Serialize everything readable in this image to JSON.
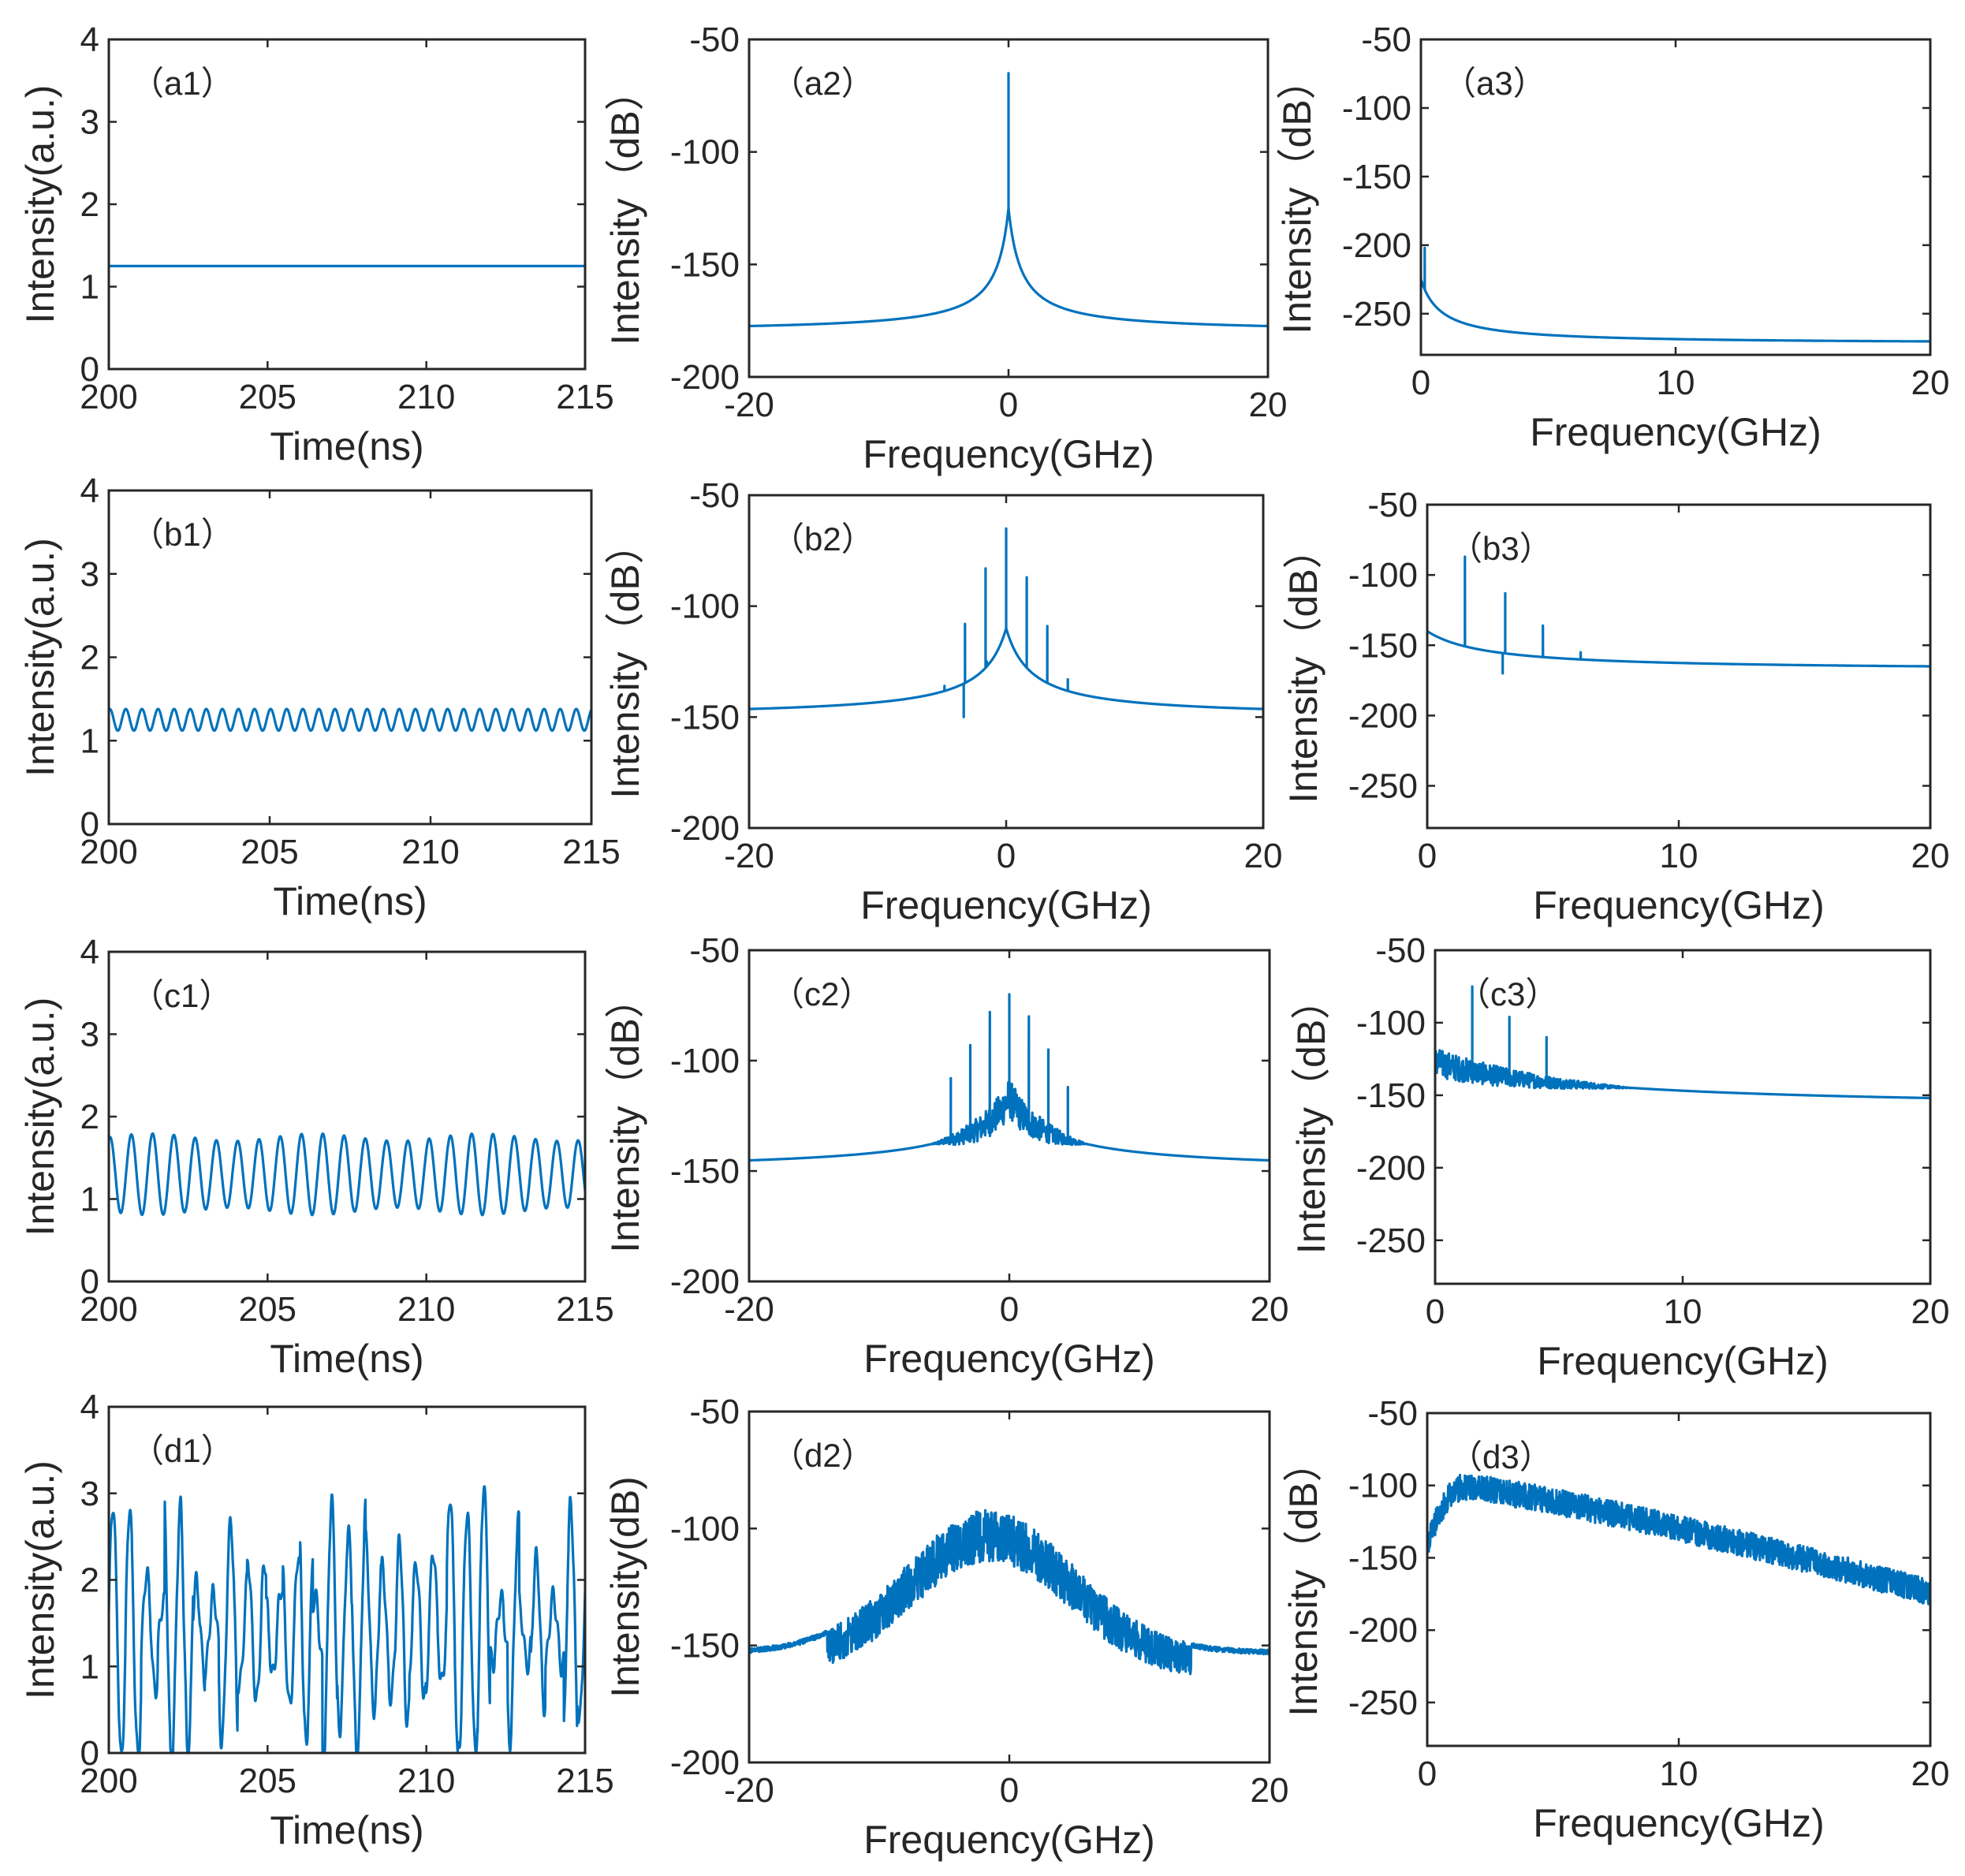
{
  "colors": {
    "line": "#0072BD",
    "axis": "#262626",
    "background": "#ffffff"
  },
  "chart_data": [
    {
      "id": "a1",
      "type": "line",
      "label": "（a1）",
      "xlabel": "Time(ns)",
      "ylabel": "Intensity(a.u.)",
      "xlim": [
        200,
        215
      ],
      "ylim": [
        0,
        4
      ],
      "xticks": [
        200,
        205,
        210,
        215
      ],
      "yticks": [
        0,
        1,
        2,
        3,
        4
      ],
      "xticklabels": [
        "200",
        "205",
        "210",
        "215"
      ],
      "yticklabels": [
        "0",
        "1",
        "2",
        "3",
        "4"
      ],
      "signal": {
        "kind": "constant",
        "level": 1.25
      }
    },
    {
      "id": "a2",
      "type": "line",
      "label": "（a2）",
      "xlabel": "Frequency(GHz)",
      "ylabel": "Intensity（dB）",
      "xlim": [
        -20,
        20
      ],
      "ylim": [
        -200,
        -50
      ],
      "xticks": [
        -20,
        0,
        20
      ],
      "yticks": [
        -200,
        -150,
        -100,
        -50
      ],
      "xticklabels": [
        "-20",
        "0",
        "20"
      ],
      "yticklabels": [
        "-200",
        "-150",
        "-100",
        "-50"
      ],
      "signal": {
        "kind": "spectrum",
        "base_center": -125,
        "base_edge": -180,
        "width": 0.25,
        "noise": 0,
        "peaks": [
          {
            "f": 0,
            "db": -65
          }
        ]
      }
    },
    {
      "id": "a3",
      "type": "line",
      "label": "（a3）",
      "xlabel": "Frequency(GHz)",
      "ylabel": "Intensity（dB）",
      "xlim": [
        0,
        20
      ],
      "ylim": [
        -280,
        -50
      ],
      "xticks": [
        0,
        10,
        20
      ],
      "yticks": [
        -250,
        -200,
        -150,
        -100,
        -50
      ],
      "xticklabels": [
        "0",
        "10",
        "20"
      ],
      "yticklabels": [
        "-250",
        "-200",
        "-150",
        "-100",
        "-50"
      ],
      "signal": {
        "kind": "spectrum",
        "base_center": -225,
        "base_edge": -272,
        "width": 0.2,
        "noise": 0,
        "peaks": [
          {
            "f": 0.15,
            "db": -202
          }
        ]
      }
    },
    {
      "id": "b1",
      "type": "line",
      "label": "（b1）",
      "xlabel": "Time(ns)",
      "ylabel": "Intensity(a.u.)",
      "xlim": [
        200,
        215
      ],
      "ylim": [
        0,
        4
      ],
      "xticks": [
        200,
        205,
        210,
        215
      ],
      "yticks": [
        0,
        1,
        2,
        3,
        4
      ],
      "xticklabels": [
        "200",
        "205",
        "210",
        "215"
      ],
      "yticklabels": [
        "0",
        "1",
        "2",
        "3",
        "4"
      ],
      "signal": {
        "kind": "oscillation",
        "mean": 1.25,
        "amp": 0.13,
        "period": 0.5,
        "amp_mod": 0,
        "chaos": 0
      }
    },
    {
      "id": "b2",
      "type": "line",
      "label": "（b2）",
      "xlabel": "Frequency(GHz)",
      "ylabel": "Intensity（dB）",
      "xlim": [
        -20,
        20
      ],
      "ylim": [
        -200,
        -50
      ],
      "xticks": [
        -20,
        0,
        20
      ],
      "yticks": [
        -200,
        -150,
        -100,
        -50
      ],
      "xticklabels": [
        "-20",
        "0",
        "20"
      ],
      "yticklabels": [
        "-200",
        "-150",
        "-100",
        "-50"
      ],
      "signal": {
        "kind": "spectrum",
        "base_center": -110,
        "base_edge": -150,
        "width": 0.5,
        "noise": 0,
        "peaks": [
          {
            "f": 0,
            "db": -65
          },
          {
            "f": -1.6,
            "db": -83
          },
          {
            "f": 1.6,
            "db": -87
          },
          {
            "f": -3.2,
            "db": -108
          },
          {
            "f": 3.2,
            "db": -109
          },
          {
            "f": -4.8,
            "db": -136
          },
          {
            "f": 4.8,
            "db": -133
          },
          {
            "f": -3.3,
            "db": -150
          },
          {
            "f": -1.5,
            "db": -125
          }
        ]
      }
    },
    {
      "id": "b3",
      "type": "line",
      "label": "（b3）",
      "xlabel": "Frequency(GHz)",
      "ylabel": "Intensity（dB）",
      "xlim": [
        0,
        20
      ],
      "ylim": [
        -280,
        -50
      ],
      "xticks": [
        0,
        10,
        20
      ],
      "yticks": [
        -250,
        -200,
        -150,
        -100,
        -50
      ],
      "xticklabels": [
        "0",
        "10",
        "20"
      ],
      "yticklabels": [
        "-250",
        "-200",
        "-150",
        "-100",
        "-50"
      ],
      "signal": {
        "kind": "spectrum",
        "base_center": -140,
        "base_edge": -168,
        "width": 0.6,
        "noise": 0,
        "peaks": [
          {
            "f": 1.5,
            "db": -87
          },
          {
            "f": 3.1,
            "db": -113
          },
          {
            "f": 4.6,
            "db": -136
          },
          {
            "f": 3.0,
            "db": -170
          },
          {
            "f": 6.1,
            "db": -155
          }
        ]
      }
    },
    {
      "id": "c1",
      "type": "line",
      "label": "（c1）",
      "xlabel": "Time(ns)",
      "ylabel": "Intensity(a.u.)",
      "xlim": [
        200,
        215
      ],
      "ylim": [
        0,
        4
      ],
      "xticks": [
        200,
        205,
        210,
        215
      ],
      "yticks": [
        0,
        1,
        2,
        3,
        4
      ],
      "xticklabels": [
        "200",
        "205",
        "210",
        "215"
      ],
      "yticklabels": [
        "0",
        "1",
        "2",
        "3",
        "4"
      ],
      "signal": {
        "kind": "oscillation",
        "mean": 1.3,
        "amp": 0.45,
        "period": 0.67,
        "amp_mod": 0.1,
        "chaos": 0
      }
    },
    {
      "id": "c2",
      "type": "line",
      "label": "（c2）",
      "xlabel": "Frequency(GHz)",
      "ylabel": "Intensity（dB）",
      "xlim": [
        -20,
        20
      ],
      "ylim": [
        -200,
        -50
      ],
      "xticks": [
        -20,
        0,
        20
      ],
      "yticks": [
        -200,
        -150,
        -100,
        -50
      ],
      "xticklabels": [
        "-20",
        "0",
        "20"
      ],
      "yticklabels": [
        "-200",
        "-150",
        "-100",
        "-50"
      ],
      "signal": {
        "kind": "spectrum",
        "base_center": -115,
        "base_edge": -150,
        "width": 0.8,
        "noise": 18,
        "noise_span": 6,
        "peaks": [
          {
            "f": 0,
            "db": -70
          },
          {
            "f": -1.5,
            "db": -78
          },
          {
            "f": 1.5,
            "db": -80
          },
          {
            "f": -3,
            "db": -93
          },
          {
            "f": 3,
            "db": -95
          },
          {
            "f": -4.5,
            "db": -108
          },
          {
            "f": 4.5,
            "db": -112
          }
        ]
      }
    },
    {
      "id": "c3",
      "type": "line",
      "label": "（c3）",
      "xlabel": "Frequency(GHz)",
      "ylabel": "Intensity（dB）",
      "xlim": [
        0,
        20
      ],
      "ylim": [
        -280,
        -50
      ],
      "xticks": [
        0,
        10,
        20
      ],
      "yticks": [
        -250,
        -200,
        -150,
        -100,
        -50
      ],
      "xticklabels": [
        "0",
        "10",
        "20"
      ],
      "yticklabels": [
        "-250",
        "-200",
        "-150",
        "-100",
        "-50"
      ],
      "signal": {
        "kind": "spectrum",
        "base_center": -125,
        "base_edge": -160,
        "width": 1.5,
        "noise": 20,
        "noise_span": 8,
        "peaks": [
          {
            "f": 1.5,
            "db": -75
          },
          {
            "f": 3.0,
            "db": -96
          },
          {
            "f": 4.5,
            "db": -110
          }
        ]
      }
    },
    {
      "id": "d1",
      "type": "line",
      "label": "（d1）",
      "xlabel": "Time(ns)",
      "ylabel": "Intensity(a.u.)",
      "xlim": [
        200,
        215
      ],
      "ylim": [
        0,
        4
      ],
      "xticks": [
        200,
        205,
        210,
        215
      ],
      "yticks": [
        0,
        1,
        2,
        3,
        4
      ],
      "xticklabels": [
        "200",
        "205",
        "210",
        "215"
      ],
      "yticklabels": [
        "0",
        "1",
        "2",
        "3",
        "4"
      ],
      "signal": {
        "kind": "chaotic",
        "mean": 1.4,
        "amp": 0.9,
        "period": 0.55
      }
    },
    {
      "id": "d2",
      "type": "line",
      "label": "（d2）",
      "xlabel": "Frequency(GHz)",
      "ylabel": "Intensity(dB)",
      "xlim": [
        -20,
        20
      ],
      "ylim": [
        -200,
        -50
      ],
      "xticks": [
        -20,
        0,
        20
      ],
      "yticks": [
        -200,
        -150,
        -100,
        -50
      ],
      "xticklabels": [
        "-20",
        "0",
        "20"
      ],
      "yticklabels": [
        "-200",
        "-150",
        "-100",
        "-50"
      ],
      "signal": {
        "kind": "broadband",
        "center": -1.5,
        "top": -92,
        "edge": -152,
        "sigma": 9,
        "noise": 22
      }
    },
    {
      "id": "d3",
      "type": "line",
      "label": "（d3）",
      "xlabel": "Frequency(GHz)",
      "ylabel": "Intensity（dB）",
      "xlim": [
        0,
        20
      ],
      "ylim": [
        -280,
        -50
      ],
      "xticks": [
        0,
        10,
        20
      ],
      "yticks": [
        -250,
        -200,
        -150,
        -100,
        -50
      ],
      "xticklabels": [
        "0",
        "10",
        "20"
      ],
      "yticklabels": [
        "-250",
        "-200",
        "-150",
        "-100",
        "-50"
      ],
      "signal": {
        "kind": "broadband_half",
        "peak_f": 1.5,
        "top": -92,
        "end": -165,
        "noise": 18
      }
    }
  ]
}
